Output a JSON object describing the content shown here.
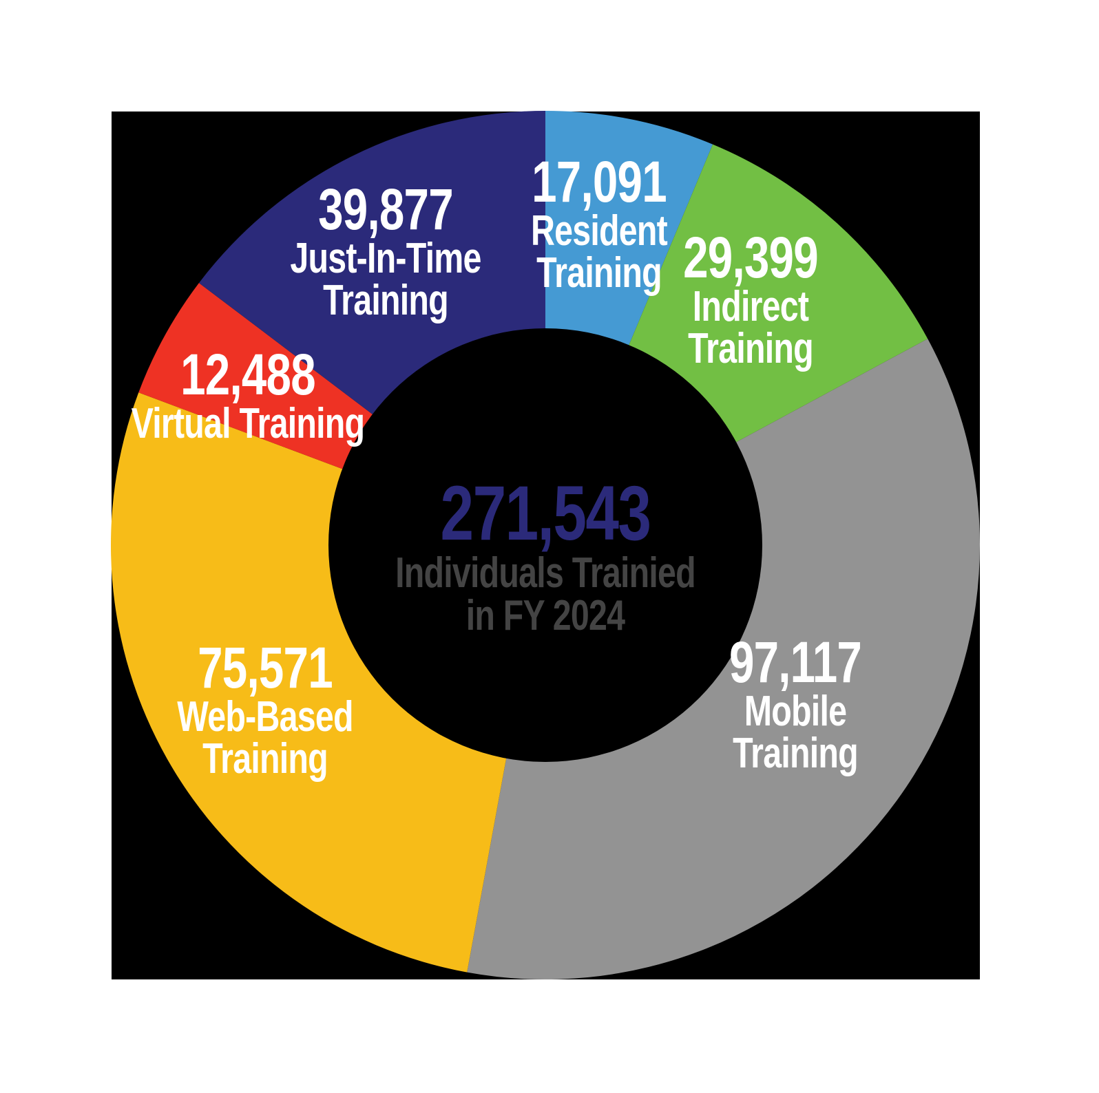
{
  "chart_data": {
    "type": "pie",
    "subtype": "donut",
    "title": "271,543 Individuals Trainied in FY 2024",
    "total": 271543,
    "total_label": "271,543",
    "caption_line1": "Individuals Trainied",
    "caption_line2": "in FY 2024",
    "start_angle_deg": 0,
    "direction": "clockwise",
    "legend": "none (labels inside slices)",
    "slices": [
      {
        "name": "Resident Training",
        "value": 17091,
        "value_label": "17,091",
        "line1": "Resident",
        "line2": "Training",
        "color": "#459AD3"
      },
      {
        "name": "Indirect Training",
        "value": 29399,
        "value_label": "29,399",
        "line1": "Indirect",
        "line2": "Training",
        "color": "#72BF44"
      },
      {
        "name": "Mobile Training",
        "value": 97117,
        "value_label": "97,117",
        "line1": "Mobile",
        "line2": "Training",
        "color": "#939393"
      },
      {
        "name": "Web-Based Training",
        "value": 75571,
        "value_label": "75,571",
        "line1": "Web-Based",
        "line2": "Training",
        "color": "#F7BC18"
      },
      {
        "name": "Virtual Training",
        "value": 12488,
        "value_label": "12,488",
        "line1": "Virtual Training",
        "line2": "",
        "color": "#EE3224"
      },
      {
        "name": "Just-In-Time Training",
        "value": 39877,
        "value_label": "39,877",
        "line1": "Just-In-Time",
        "line2": "Training",
        "color": "#2B2A7A"
      }
    ]
  },
  "colors": {
    "background": "#000000",
    "page": "#ffffff",
    "total_text": "#2B2A7A",
    "caption_text": "#444444",
    "label_text": "#ffffff"
  }
}
